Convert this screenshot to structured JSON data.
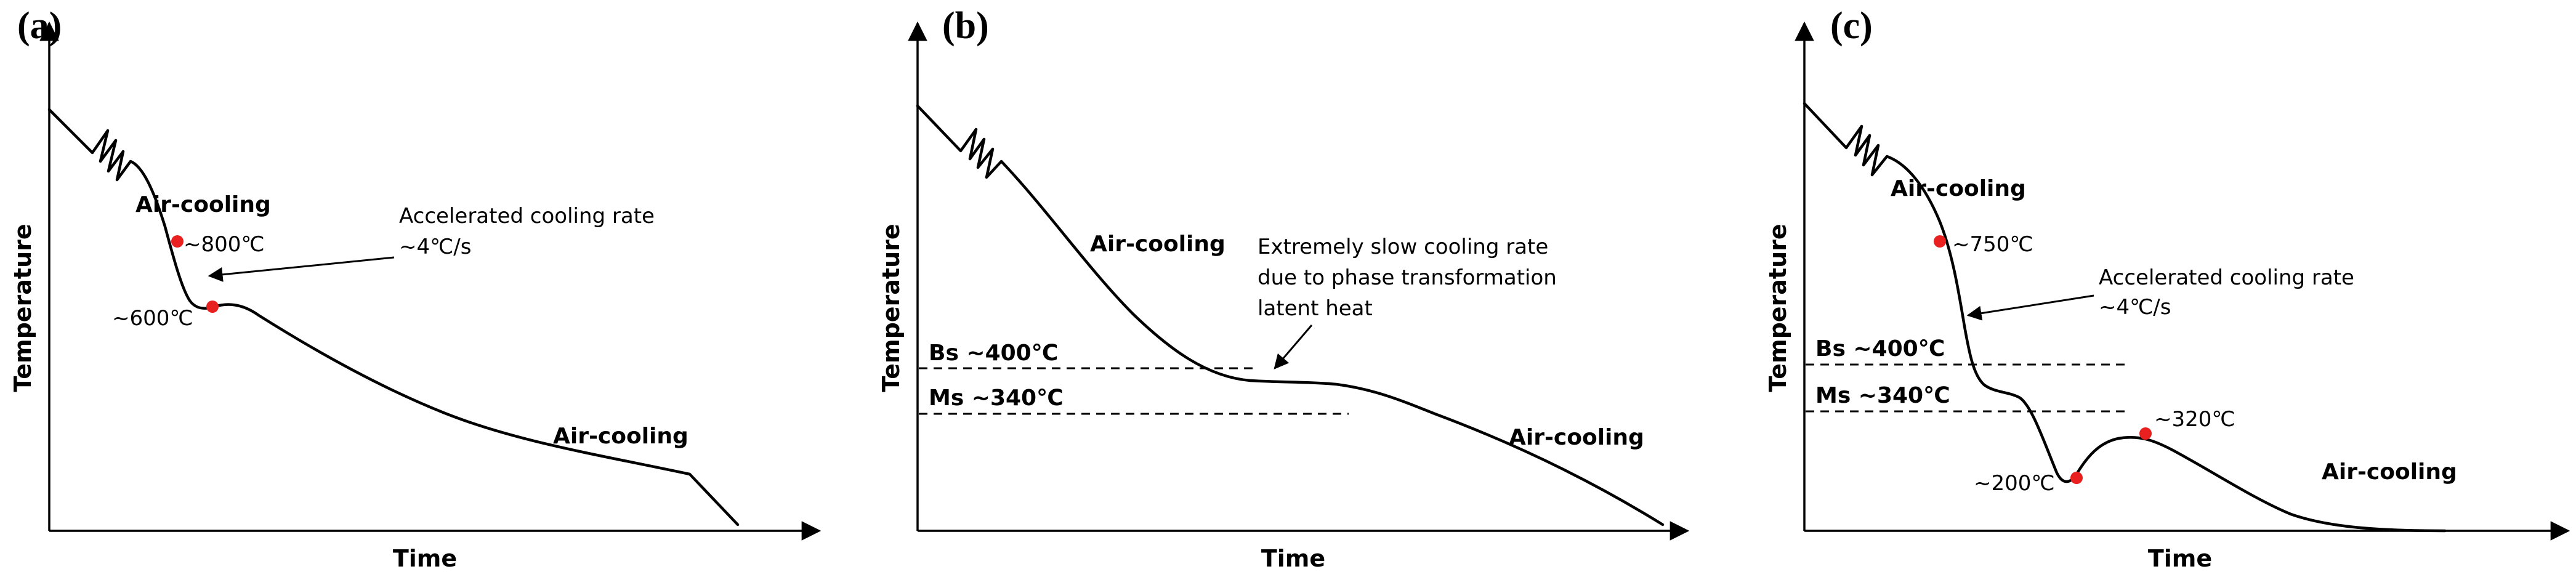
{
  "colors": {
    "line": "#000000",
    "point": "#e8201f",
    "background": "#ffffff"
  },
  "panels": [
    {
      "letter": "(a)",
      "xlabel": "Time",
      "ylabel": "Temperature",
      "labels": {
        "air_cooling_top": "Air-cooling",
        "point_high": "~800℃",
        "point_low": "~600℃",
        "note_line1": "Accelerated cooling rate",
        "note_line2": "~4℃/s",
        "air_cooling_bottom": "Air-cooling"
      }
    },
    {
      "letter": "(b)",
      "xlabel": "Time",
      "ylabel": "Temperature",
      "labels": {
        "air_cooling_top": "Air-cooling",
        "note_line1": "Extremely slow cooling rate",
        "note_line2": "due to phase transformation",
        "note_line3": "latent heat",
        "bs": "Bs ~400℃",
        "ms": "Ms ~340℃",
        "air_cooling_bottom": "Air-cooling"
      }
    },
    {
      "letter": "(c)",
      "xlabel": "Time",
      "ylabel": "Temperature",
      "labels": {
        "air_cooling_top": "Air-cooling",
        "point_high": "~750℃",
        "note_line1": "Accelerated cooling rate",
        "note_line2": "~4℃/s",
        "bs": "Bs ~400℃",
        "ms": "Ms ~340℃",
        "point_min": "~200℃",
        "point_reheat": "~320℃",
        "air_cooling_bottom": "Air-cooling"
      }
    }
  ]
}
